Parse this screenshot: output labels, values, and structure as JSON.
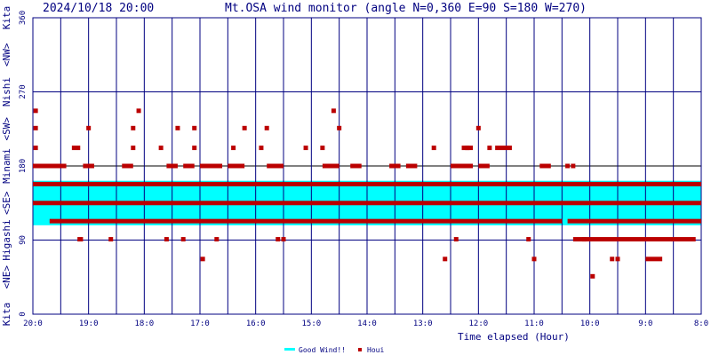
{
  "chart_data": {
    "type": "scatter",
    "timestamp": "2024/10/18 20:00",
    "title": "Mt.OSA wind monitor (angle N=0,360 E=90 S=180 W=270)",
    "xlabel": "Time elapsed (Hour)",
    "x_ticks": [
      "20:0",
      "19:0",
      "18:0",
      "17:0",
      "16:0",
      "15:0",
      "14:0",
      "13:0",
      "12:0",
      "11:0",
      "10:0",
      "9:0",
      "8:0"
    ],
    "xlim": [
      0,
      12
    ],
    "ylim": [
      0,
      360
    ],
    "y_ticks": [
      "0",
      "90",
      "180",
      "270",
      "360"
    ],
    "y_direction_labels": [
      "Kita",
      "<NE>",
      "Higashi",
      "<SE>",
      "Minami",
      "<SW>",
      "Nishi",
      "<NW>",
      "Kita"
    ],
    "good_wind_band": {
      "name": "Good Wind!!",
      "from": 108,
      "to": 162,
      "color": "#00ffff"
    },
    "houi_series": {
      "name": "Houi",
      "color": "#bb0000",
      "segments": [
        {
          "from": 0.0,
          "to": 12.0,
          "y": 158
        },
        {
          "from": 0.0,
          "to": 12.0,
          "y": 135
        },
        {
          "from": 0.3,
          "to": 9.5,
          "y": 113
        },
        {
          "from": 9.6,
          "to": 12.0,
          "y": 113
        },
        {
          "from": 0.0,
          "to": 0.6,
          "y": 180
        },
        {
          "from": 0.9,
          "to": 1.1,
          "y": 180
        },
        {
          "from": 1.6,
          "to": 1.8,
          "y": 180
        },
        {
          "from": 2.4,
          "to": 2.6,
          "y": 180
        },
        {
          "from": 2.7,
          "to": 2.9,
          "y": 180
        },
        {
          "from": 3.0,
          "to": 3.4,
          "y": 180
        },
        {
          "from": 3.5,
          "to": 3.8,
          "y": 180
        },
        {
          "from": 4.2,
          "to": 4.5,
          "y": 180
        },
        {
          "from": 5.2,
          "to": 5.5,
          "y": 180
        },
        {
          "from": 5.7,
          "to": 5.9,
          "y": 180
        },
        {
          "from": 6.4,
          "to": 6.6,
          "y": 180
        },
        {
          "from": 6.7,
          "to": 6.9,
          "y": 180
        },
        {
          "from": 7.5,
          "to": 7.9,
          "y": 180
        },
        {
          "from": 8.0,
          "to": 8.2,
          "y": 180
        },
        {
          "from": 9.1,
          "to": 9.3,
          "y": 180
        },
        {
          "from": 0.7,
          "to": 0.85,
          "y": 202
        },
        {
          "from": 7.7,
          "to": 7.9,
          "y": 202
        },
        {
          "from": 8.3,
          "to": 8.6,
          "y": 202
        },
        {
          "from": 0.8,
          "to": 0.9,
          "y": 91
        },
        {
          "from": 9.7,
          "to": 11.9,
          "y": 91
        },
        {
          "from": 11.0,
          "to": 11.3,
          "y": 67
        }
      ],
      "points": [
        [
          0.05,
          247
        ],
        [
          0.05,
          226
        ],
        [
          0.05,
          202
        ],
        [
          1.0,
          226
        ],
        [
          1.4,
          91
        ],
        [
          1.8,
          202
        ],
        [
          1.8,
          226
        ],
        [
          1.9,
          247
        ],
        [
          2.3,
          202
        ],
        [
          2.4,
          91
        ],
        [
          2.6,
          226
        ],
        [
          2.7,
          91
        ],
        [
          2.9,
          226
        ],
        [
          2.9,
          202
        ],
        [
          3.05,
          67
        ],
        [
          3.3,
          91
        ],
        [
          3.6,
          202
        ],
        [
          3.8,
          226
        ],
        [
          4.1,
          202
        ],
        [
          4.2,
          226
        ],
        [
          4.4,
          91
        ],
        [
          4.5,
          91
        ],
        [
          4.9,
          202
        ],
        [
          5.2,
          202
        ],
        [
          5.4,
          247
        ],
        [
          5.5,
          226
        ],
        [
          7.2,
          202
        ],
        [
          7.6,
          91
        ],
        [
          7.8,
          202
        ],
        [
          7.4,
          67
        ],
        [
          8.0,
          226
        ],
        [
          8.2,
          202
        ],
        [
          8.9,
          91
        ],
        [
          9.0,
          67
        ],
        [
          9.6,
          180
        ],
        [
          9.7,
          180
        ],
        [
          9.9,
          91
        ],
        [
          10.05,
          46
        ],
        [
          10.4,
          67
        ],
        [
          10.5,
          67
        ]
      ]
    },
    "legend": [
      {
        "label": "Good Wind!!",
        "color": "#00ffff",
        "marker": "line"
      },
      {
        "label": "Houi",
        "color": "#bb0000",
        "marker": "square"
      }
    ],
    "grid": true
  }
}
